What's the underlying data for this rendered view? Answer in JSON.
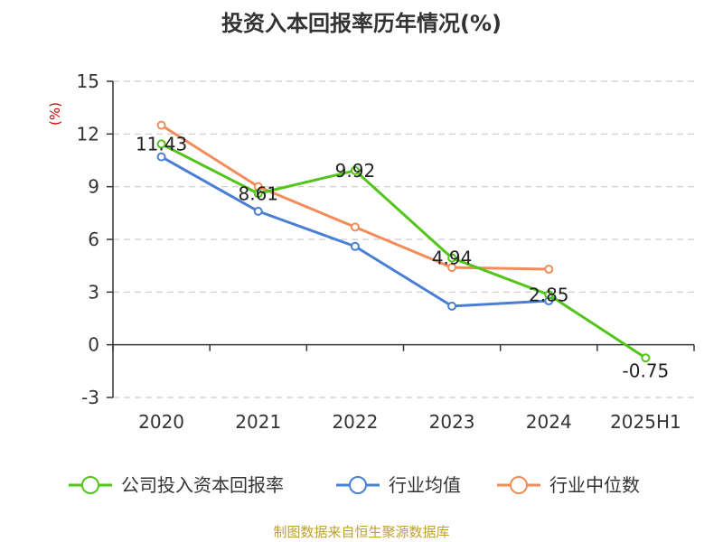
{
  "chart_data": {
    "type": "line",
    "title": "投资入本回报率历年情况(%)",
    "ylabel": "(%)",
    "xlabel": "",
    "categories": [
      "2020",
      "2021",
      "2022",
      "2023",
      "2024",
      "2025H1"
    ],
    "ylim": [
      -3,
      15
    ],
    "yticks": [
      15,
      12,
      9,
      6,
      3,
      0,
      -3
    ],
    "grid": true,
    "legend_position": "bottom",
    "series": [
      {
        "name": "公司投入资本回报率",
        "color": "#52c41a",
        "values": [
          11.43,
          8.61,
          9.92,
          4.94,
          2.85,
          -0.75
        ],
        "labels": [
          "11.43",
          "8.61",
          "9.92",
          "4.94",
          "2.85",
          "-0.75"
        ]
      },
      {
        "name": "行业均值",
        "color": "#4a7fd6",
        "values": [
          10.7,
          7.6,
          5.6,
          2.2,
          2.5,
          null
        ]
      },
      {
        "name": "行业中位数",
        "color": "#f28c5a",
        "values": [
          12.5,
          9.0,
          6.7,
          4.4,
          4.3,
          null
        ]
      }
    ],
    "source": "制图数据来自恒生聚源数据库"
  },
  "colors": {
    "ylabel": "#cc0000",
    "source": "#c0a030",
    "axis": "#333333",
    "grid": "#cccccc"
  }
}
